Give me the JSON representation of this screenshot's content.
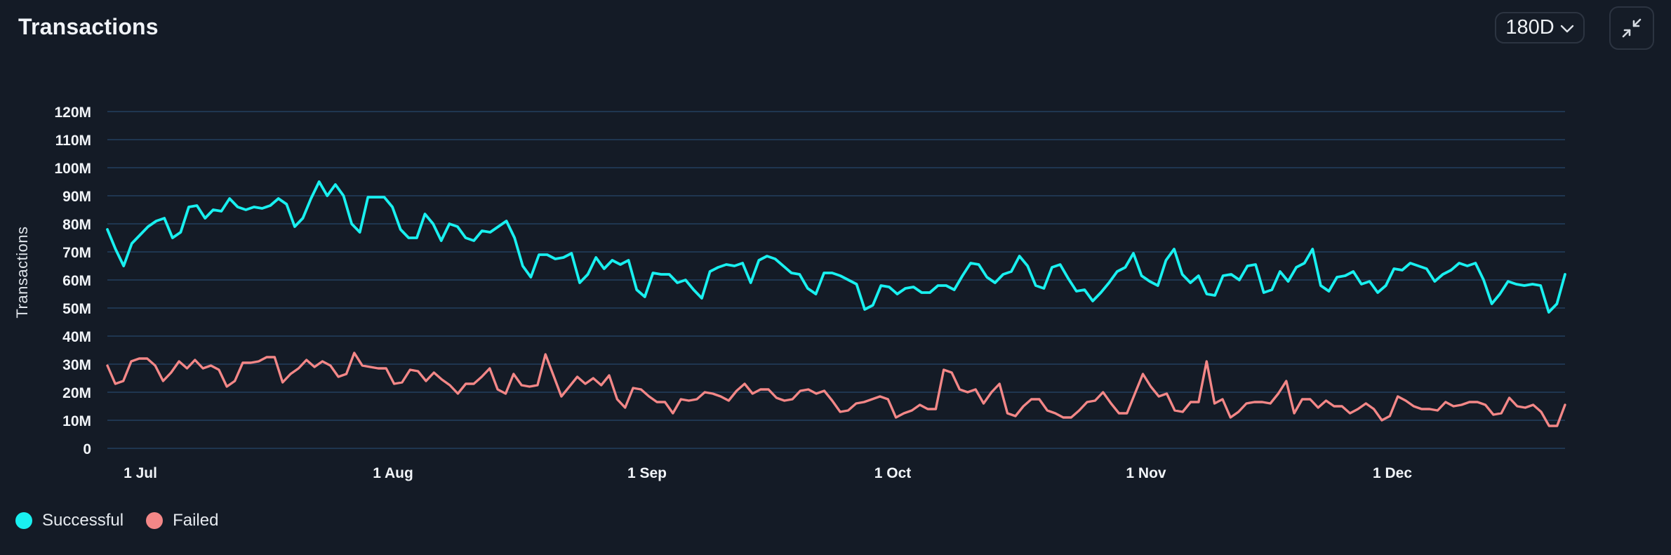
{
  "header": {
    "title": "Transactions",
    "range_selector": {
      "label": "180D",
      "icon": "chevron-down-icon"
    },
    "collapse_button": {
      "icon": "collapse-arrows-icon"
    }
  },
  "legend": {
    "items": [
      {
        "label": "Successful",
        "color": "#19f0f0"
      },
      {
        "label": "Failed",
        "color": "#f38787"
      }
    ]
  },
  "chart_data": {
    "type": "line",
    "title": "Transactions",
    "xlabel": "",
    "ylabel": "Transactions",
    "ylim": [
      0,
      120000000
    ],
    "y_ticks": [
      "0",
      "10M",
      "20M",
      "30M",
      "40M",
      "50M",
      "60M",
      "70M",
      "80M",
      "90M",
      "100M",
      "110M",
      "120M"
    ],
    "x_ticks": [
      "1 Jul",
      "1 Aug",
      "1 Sep",
      "1 Oct",
      "1 Nov",
      "1 Dec"
    ],
    "x_range": [
      "27 Jun",
      "24 Dec"
    ],
    "x_interval": "daily",
    "grid": true,
    "legend_position": "bottom-left",
    "units": "millions",
    "series": [
      {
        "name": "Successful",
        "color": "#19f0f0",
        "values": [
          78,
          71,
          65,
          73,
          76,
          79,
          81,
          82,
          75,
          77,
          86,
          86.5,
          82,
          85,
          84.5,
          89,
          86,
          85,
          86,
          85.5,
          86.5,
          89,
          87,
          79,
          82,
          89,
          95,
          90,
          94,
          90,
          80,
          77,
          89.5,
          89.5,
          89.5,
          86,
          78,
          75,
          75,
          83.5,
          80,
          74,
          80,
          79,
          75,
          74,
          77.5,
          77,
          79,
          81,
          75,
          65,
          61,
          69,
          69,
          67.5,
          68,
          69.5,
          59,
          62,
          68,
          64,
          67,
          65.5,
          67,
          56.5,
          54,
          62.5,
          62,
          62,
          59,
          60,
          56.5,
          53.5,
          63,
          64.5,
          65.5,
          65,
          66,
          59,
          67,
          68.5,
          67.5,
          65,
          62.5,
          62,
          57,
          55,
          62.5,
          62.5,
          61.5,
          60,
          58.5,
          49.5,
          51,
          58,
          57.5,
          55,
          57,
          57.5,
          55.5,
          55.5,
          58,
          58,
          56.5,
          61.5,
          66,
          65.5,
          61,
          59,
          62,
          63,
          68.5,
          65,
          58,
          57,
          64.5,
          65.5,
          60.5,
          56,
          56.5,
          52.5,
          55.5,
          59,
          63,
          64.5,
          69.5,
          61.5,
          59.5,
          58,
          67,
          71,
          62,
          59,
          61.5,
          55,
          54.5,
          61.5,
          62,
          60,
          65,
          65.5,
          55.5,
          56.5,
          63,
          59.5,
          64.5,
          66,
          71,
          58,
          56,
          61,
          61.5,
          63,
          58.5,
          59.5,
          55.5,
          58,
          64,
          63.5,
          66,
          65,
          64,
          59.5,
          62,
          63.5,
          66,
          65,
          66,
          60,
          51.5,
          55,
          59.5,
          58.5,
          58,
          58.5,
          58,
          48.5,
          51.5,
          62
        ]
      },
      {
        "name": "Failed",
        "color": "#f38787",
        "values": [
          29.5,
          23,
          24,
          31,
          32,
          32,
          29.5,
          24,
          27,
          31,
          28.5,
          31.5,
          28.5,
          29.5,
          28,
          22,
          24,
          30.5,
          30.5,
          31,
          32.5,
          32.5,
          23.5,
          26.5,
          28.5,
          31.5,
          29,
          31,
          29.5,
          25.5,
          26.5,
          34,
          29.5,
          29,
          28.5,
          28.5,
          23,
          23.5,
          28,
          27.5,
          24,
          27,
          24.5,
          22.5,
          19.5,
          23,
          23,
          25.5,
          28.5,
          21,
          19.5,
          26.5,
          22.5,
          22,
          22.5,
          33.5,
          26,
          18.5,
          22,
          25.5,
          23,
          25,
          22.5,
          26,
          17.5,
          14.5,
          21.5,
          21,
          18.5,
          16.5,
          16.5,
          12.5,
          17.5,
          17,
          17.5,
          20,
          19.5,
          18.5,
          17,
          20.5,
          23,
          19.5,
          21,
          21,
          18,
          17,
          17.5,
          20.5,
          21,
          19.5,
          20.5,
          17,
          13,
          13.5,
          16,
          16.5,
          17.5,
          18.5,
          17.5,
          11,
          12.5,
          13.5,
          15.5,
          14,
          14,
          28,
          27,
          21,
          20,
          21,
          16,
          20,
          23,
          12.5,
          11.5,
          15,
          17.5,
          17.5,
          13.5,
          12.5,
          11,
          11,
          13.5,
          16.5,
          17,
          20,
          16,
          12.5,
          12.5,
          19.5,
          26.5,
          22,
          18.5,
          19.5,
          13.5,
          13,
          16.5,
          16.5,
          31,
          16,
          17.5,
          11,
          13,
          16,
          16.5,
          16.5,
          16,
          19.5,
          24,
          12.5,
          17.5,
          17.5,
          14.5,
          17,
          15,
          15,
          12.5,
          14,
          16,
          14,
          10,
          11.5,
          18.5,
          17,
          15,
          14,
          14,
          13.5,
          16.5,
          15,
          15.5,
          16.5,
          16.5,
          15.5,
          12,
          12.5,
          18,
          15,
          14.5,
          15.5,
          13,
          8,
          8,
          15.5
        ]
      }
    ]
  }
}
